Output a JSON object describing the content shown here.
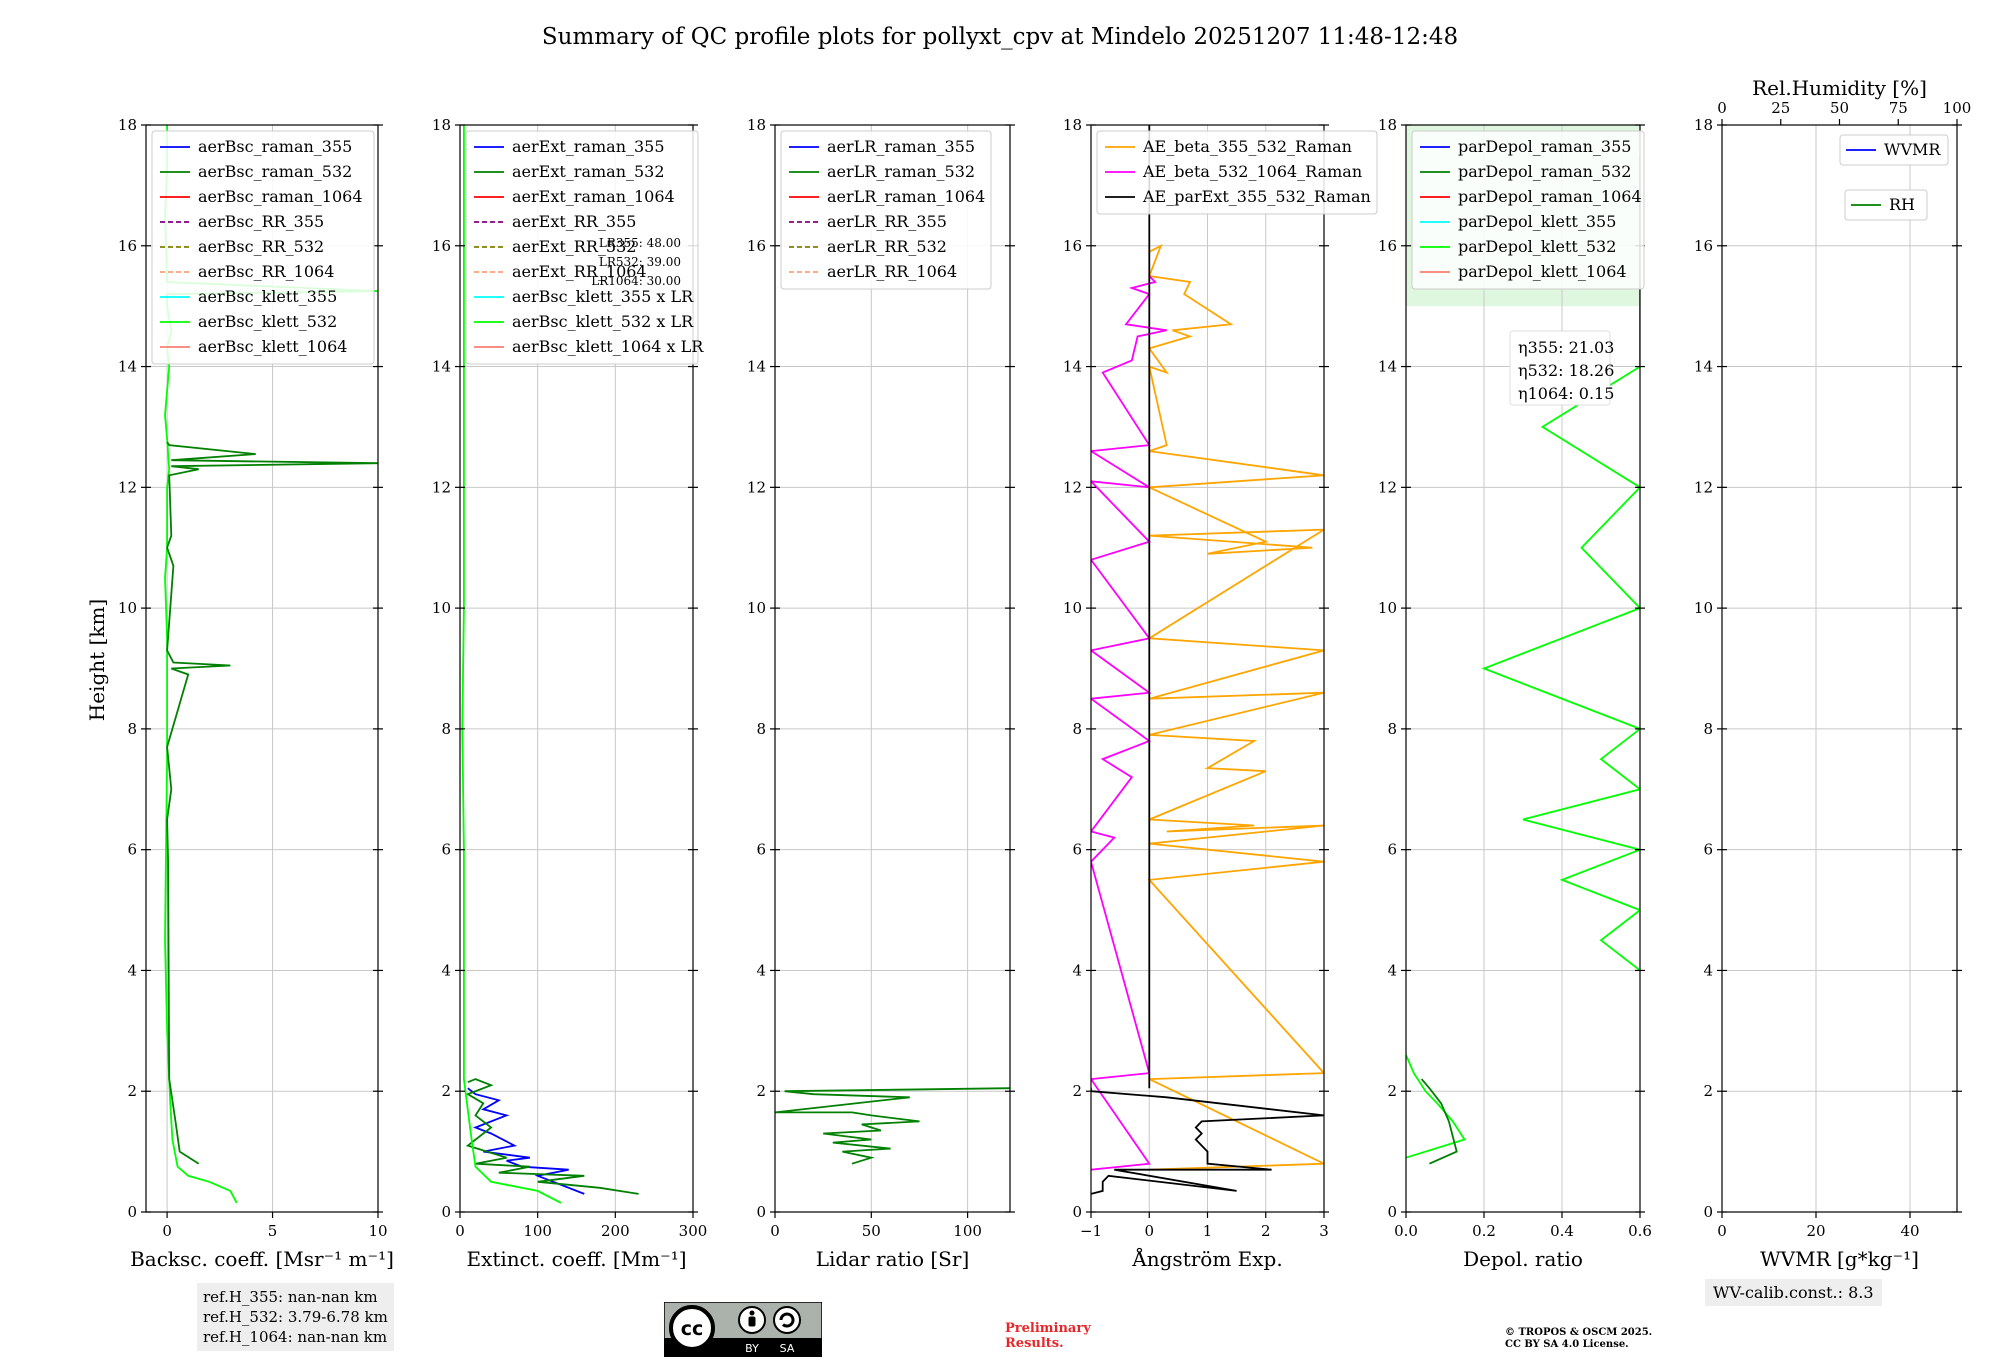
{
  "figure_title": "Summary of QC profile plots for pollyxt_cpv at Mindelo 20251207 11:48-12:48",
  "shared_ylabel": "Height [km]",
  "colors": {
    "raman_355": "#0000ff",
    "raman_532": "#008000",
    "raman_1064": "#ff0000",
    "rr_355": "#800080",
    "rr_532": "#808000",
    "rr_1064": "#ffa07a",
    "klett_355": "#00ffff",
    "klett_532": "#00ff00",
    "klett_1064": "#fa8072",
    "ae_355_532": "#ffa500",
    "ae_532_1064": "#ff00ff",
    "ae_ext": "#000000"
  },
  "chart_data": [
    {
      "type": "line",
      "panel": "backscatter",
      "xlabel": "Backsc. coeff. [Msr⁻¹ m⁻¹]",
      "ylabel": "Height [km]",
      "xlim": [
        -1,
        10
      ],
      "ylim": [
        0,
        18
      ],
      "xticks": [
        "0",
        "5",
        "10"
      ],
      "xtick_values": [
        0,
        5,
        10
      ],
      "yticks": [
        "0",
        "2",
        "4",
        "6",
        "8",
        "10",
        "12",
        "14",
        "16",
        "18"
      ],
      "legend": [
        "aerBsc_raman_355",
        "aerBsc_raman_532",
        "aerBsc_raman_1064",
        "aerBsc_RR_355",
        "aerBsc_RR_532",
        "aerBsc_RR_1064",
        "aerBsc_klett_355",
        "aerBsc_klett_532",
        "aerBsc_klett_1064"
      ],
      "series": [
        {
          "name": "aerBsc_klett_532",
          "x": [
            3.3,
            3.0,
            2.0,
            1.0,
            0.5,
            0.25,
            0.15,
            0.1,
            0.0,
            -0.1,
            -0.05,
            0.0,
            0.0,
            0.0,
            -0.1,
            0.0,
            0.0,
            0.0,
            0.1,
            0.0,
            -0.1,
            0.0,
            0.1,
            0.0,
            0.2,
            0.0,
            0.0,
            10,
            0.0,
            -0.1,
            0.0,
            0.0
          ],
          "y": [
            0.15,
            0.35,
            0.5,
            0.6,
            0.75,
            1.2,
            1.8,
            2.2,
            3.0,
            4.5,
            6.0,
            7.5,
            8.5,
            9.5,
            10.5,
            11.0,
            11.8,
            12.0,
            12.3,
            12.8,
            13.2,
            13.6,
            14.0,
            14.3,
            14.6,
            15.0,
            15.2,
            15.25,
            15.4,
            16.5,
            17.3,
            18.0
          ]
        },
        {
          "name": "aerBsc_raman_532",
          "x": [
            1.5,
            0.6,
            0.4,
            0.1,
            0.05,
            0.0,
            0.2,
            0.0,
            1.0,
            0.2,
            3.0,
            0.3,
            0.0,
            0.3,
            0.0,
            0.2,
            0.1,
            1.5,
            0.2,
            10,
            0.2,
            4.2,
            0.1,
            0.0
          ],
          "y": [
            0.8,
            1.0,
            1.5,
            2.2,
            5.8,
            6.5,
            7.0,
            7.7,
            8.9,
            9.0,
            9.05,
            9.1,
            9.3,
            10.7,
            11.0,
            11.2,
            12.2,
            12.3,
            12.35,
            12.4,
            12.45,
            12.55,
            12.7,
            12.75
          ]
        }
      ]
    },
    {
      "type": "line",
      "panel": "extinction",
      "xlabel": "Extinct. coeff. [Mm⁻¹]",
      "ylabel": "Height [km]",
      "xlim": [
        0,
        300
      ],
      "ylim": [
        0,
        18
      ],
      "xticks": [
        "0",
        "100",
        "200",
        "300"
      ],
      "xtick_values": [
        0,
        100,
        200,
        300
      ],
      "yticks": [
        "0",
        "2",
        "4",
        "6",
        "8",
        "10",
        "12",
        "14",
        "16",
        "18"
      ],
      "legend": [
        "aerExt_raman_355",
        "aerExt_raman_532",
        "aerExt_raman_1064",
        "aerExt_RR_355",
        "aerExt_RR_532",
        "aerExt_RR_1064",
        "aerBsc_klett_355 x LR",
        "aerBsc_klett_532 x LR",
        "aerBsc_klett_1064 x LR"
      ],
      "overlay_labels": [
        "LR355: 48.00",
        "LR532: 39.00",
        "LR1064: 30.00"
      ],
      "series": [
        {
          "name": "aerExt_raman_355",
          "x": [
            160,
            120,
            100,
            140,
            80,
            60,
            90,
            30,
            70,
            40,
            20,
            60,
            30,
            50,
            20,
            10
          ],
          "y": [
            0.3,
            0.5,
            0.6,
            0.7,
            0.75,
            0.85,
            0.9,
            1.0,
            1.1,
            1.3,
            1.4,
            1.6,
            1.7,
            1.85,
            1.95,
            2.05
          ]
        },
        {
          "name": "aerExt_raman_532",
          "x": [
            230,
            180,
            100,
            160,
            50,
            90,
            20,
            60,
            10,
            40,
            20,
            30,
            10,
            40,
            20,
            10
          ],
          "y": [
            0.3,
            0.4,
            0.5,
            0.6,
            0.65,
            0.75,
            0.8,
            0.9,
            1.1,
            1.4,
            1.6,
            1.8,
            1.95,
            2.1,
            2.2,
            2.15
          ]
        },
        {
          "name": "aerBsc_klett_532 x LR",
          "x": [
            130,
            100,
            40,
            20,
            15,
            5,
            5,
            5,
            3,
            5,
            5,
            5,
            5,
            5,
            5
          ],
          "y": [
            0.15,
            0.35,
            0.5,
            0.75,
            1.2,
            2.2,
            4.0,
            6.0,
            8.0,
            10.0,
            12.0,
            13.0,
            14.0,
            15.0,
            18.0
          ]
        }
      ]
    },
    {
      "type": "line",
      "panel": "lidar_ratio",
      "xlabel": "Lidar ratio [Sr]",
      "ylabel": "Height [km]",
      "xlim": [
        0,
        122
      ],
      "ylim": [
        0,
        18
      ],
      "xticks": [
        "0",
        "50",
        "100"
      ],
      "xtick_values": [
        0,
        50,
        100
      ],
      "yticks": [
        "0",
        "2",
        "4",
        "6",
        "8",
        "10",
        "12",
        "14",
        "16",
        "18"
      ],
      "legend": [
        "aerLR_raman_355",
        "aerLR_raman_532",
        "aerLR_raman_1064",
        "aerLR_RR_355",
        "aerLR_RR_532",
        "aerLR_RR_1064"
      ],
      "series": [
        {
          "name": "aerLR_raman_532",
          "x": [
            40,
            50,
            35,
            60,
            30,
            50,
            25,
            55,
            45,
            75,
            50,
            40,
            0,
            70,
            20,
            5,
            122
          ],
          "y": [
            0.8,
            0.9,
            1.0,
            1.05,
            1.15,
            1.2,
            1.3,
            1.35,
            1.45,
            1.5,
            1.6,
            1.65,
            1.65,
            1.9,
            1.95,
            2.0,
            2.05
          ]
        }
      ]
    },
    {
      "type": "line",
      "panel": "angstrom",
      "xlabel": "Ångström Exp.",
      "ylabel": "Height [km]",
      "xlim": [
        -1,
        3
      ],
      "ylim": [
        0,
        18
      ],
      "xticks": [
        "−1",
        "0",
        "1",
        "2",
        "3"
      ],
      "xtick_values": [
        -1,
        0,
        1,
        2,
        3
      ],
      "yticks": [
        "0",
        "2",
        "4",
        "6",
        "8",
        "10",
        "12",
        "14",
        "16",
        "18"
      ],
      "legend": [
        "AE_beta_355_532_Raman",
        "AE_beta_532_1064_Raman",
        "AE_parExt_355_532_Raman"
      ],
      "series": [
        {
          "name": "AE_beta_355_532_Raman",
          "x": [
            0,
            3,
            0,
            3,
            0,
            3,
            0,
            3,
            0.3,
            1.8,
            0,
            2.0,
            1.0,
            1.8,
            0,
            3,
            0,
            3,
            0,
            3,
            0,
            2.8,
            1.0,
            2.0,
            0,
            3,
            0,
            0.3,
            0,
            0.3,
            0.0,
            0.7,
            0.4,
            1.4,
            0.6,
            0.7,
            0,
            0.2,
            0
          ],
          "y": [
            0.7,
            0.8,
            2.2,
            2.3,
            5.5,
            5.8,
            6.1,
            6.4,
            6.3,
            6.4,
            6.5,
            7.3,
            7.35,
            7.8,
            7.9,
            8.6,
            8.5,
            9.3,
            9.5,
            11.3,
            11.2,
            11.0,
            10.9,
            11.1,
            12.0,
            12.2,
            12.6,
            12.7,
            14.0,
            13.9,
            14.3,
            14.5,
            14.6,
            14.7,
            15.2,
            15.4,
            15.5,
            16.0,
            15.9
          ]
        },
        {
          "name": "AE_beta_532_1064_Raman",
          "x": [
            -1,
            0,
            -1,
            0,
            -1,
            -0.6,
            -1,
            -0.3,
            -0.8,
            0,
            -1,
            0,
            -1,
            0,
            -1,
            0,
            -1,
            0,
            -1,
            0,
            -0.8,
            -0.3,
            -0.2,
            0.3,
            -0.4,
            0,
            -0.3,
            0.1,
            0
          ],
          "y": [
            0.7,
            0.8,
            2.2,
            2.3,
            5.8,
            6.2,
            6.3,
            7.2,
            7.5,
            7.8,
            8.5,
            8.6,
            9.3,
            9.5,
            10.8,
            11.1,
            12.1,
            12.0,
            12.6,
            12.7,
            13.9,
            14.1,
            14.5,
            14.6,
            14.7,
            15.2,
            15.3,
            15.4,
            15.5
          ]
        },
        {
          "name": "AE_parExt_355_532_Raman",
          "x": [
            -1,
            -0.8,
            -0.8,
            -0.7,
            1.5,
            -0.6,
            2.1,
            1.0,
            1.0,
            0.8,
            0.9,
            0.8,
            0.9,
            3,
            0.3,
            -1,
            -1
          ],
          "y": [
            0.3,
            0.35,
            0.5,
            0.6,
            0.35,
            0.7,
            0.7,
            0.8,
            1.0,
            1.2,
            1.3,
            1.4,
            1.5,
            1.6,
            1.9,
            2.0,
            2.05
          ]
        },
        {
          "name": "AE_parExt_355_532_Raman_vertical",
          "x": [
            0,
            0
          ],
          "y": [
            2.05,
            18
          ]
        }
      ]
    },
    {
      "type": "line",
      "panel": "depolarization",
      "xlabel": "Depol. ratio",
      "ylabel": "Height [km]",
      "xlim": [
        0,
        0.6
      ],
      "ylim": [
        0,
        18
      ],
      "xticks": [
        "0.0",
        "0.2",
        "0.4",
        "0.6"
      ],
      "xtick_values": [
        0,
        0.2,
        0.4,
        0.6
      ],
      "yticks": [
        "0",
        "2",
        "4",
        "6",
        "8",
        "10",
        "12",
        "14",
        "16",
        "18"
      ],
      "legend": [
        "parDepol_raman_355",
        "parDepol_raman_532",
        "parDepol_raman_1064",
        "parDepol_klett_355",
        "parDepol_klett_532",
        "parDepol_klett_1064"
      ],
      "eta_labels": [
        "η355: 21.03",
        "η532: 18.26",
        "η1064: 0.15"
      ],
      "series": [
        {
          "name": "parDepol_klett_532",
          "x": [
            0.0,
            0.15,
            0.12,
            0.08,
            0.05,
            0.02,
            0.0
          ],
          "y": [
            0.9,
            1.2,
            1.5,
            1.8,
            2.0,
            2.3,
            2.6
          ]
        },
        {
          "name": "parDepol_raman_532",
          "x": [
            0.06,
            0.13,
            0.11,
            0.09,
            0.06,
            0.04
          ],
          "y": [
            0.8,
            1.0,
            1.5,
            1.8,
            2.05,
            2.2
          ]
        },
        {
          "name": "parDepol_klett_532_noise",
          "x": [
            0.6,
            0.5,
            0.6,
            0.4,
            0.6,
            0.3,
            0.6,
            0.5,
            0.6,
            0.2,
            0.6,
            0.45,
            0.6,
            0.35,
            0.6,
            0.6
          ],
          "y": [
            4.0,
            4.5,
            5.0,
            5.5,
            6.0,
            6.5,
            7.0,
            7.5,
            8.0,
            9.0,
            10.0,
            11.0,
            12.0,
            13.0,
            14.0,
            17.5
          ]
        }
      ]
    },
    {
      "type": "line",
      "panel": "water_vapor",
      "xlabel": "WVMR [g*kg⁻¹]",
      "top_xlabel": "Rel.Humidity [%]",
      "ylabel": "Height [km]",
      "xlim": [
        0,
        50
      ],
      "ylim": [
        0,
        18
      ],
      "xticks": [
        "0",
        "20",
        "40"
      ],
      "xtick_values": [
        0,
        20,
        40
      ],
      "top_xticks": [
        "0",
        "25",
        "50",
        "75",
        "100"
      ],
      "top_xtick_values": [
        0,
        25,
        50,
        75,
        100
      ],
      "yticks": [
        "0",
        "2",
        "4",
        "6",
        "8",
        "10",
        "12",
        "14",
        "16",
        "18"
      ],
      "legend": [
        "WVMR",
        "RH"
      ],
      "series": []
    }
  ],
  "ref_heights": [
    "ref.H_355: nan-nan km",
    "ref.H_532: 3.79-6.78 km",
    "ref.H_1064: nan-nan km"
  ],
  "wv_calib": "WV-calib.const.: 8.3",
  "preliminary": [
    "Preliminary",
    "Results."
  ],
  "copyright": [
    "© TROPOS & OSCM 2025.",
    "CC BY SA 4.0 License."
  ],
  "cc_badge": {
    "logo": "cc",
    "labels": [
      "BY",
      "SA"
    ]
  }
}
